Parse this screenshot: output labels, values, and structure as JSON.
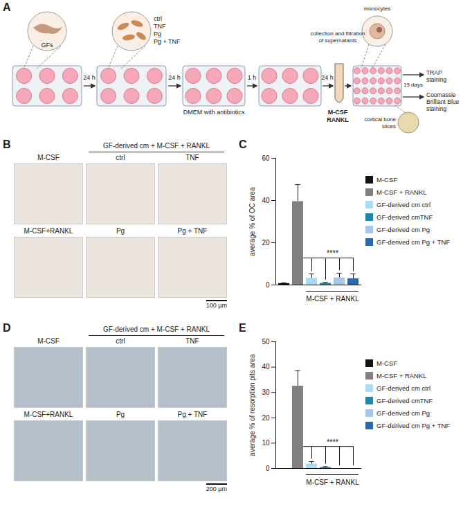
{
  "panels": {
    "A": {
      "letter": "A",
      "cells": "GFs",
      "steps": [
        "24 h",
        "24 h",
        "1 h",
        "24 h"
      ],
      "treatments": [
        "ctrl",
        "TNF",
        "Pg",
        "Pg + TNF"
      ],
      "medium": "DMEM with antibiotics",
      "collection": "collection and filtration of supernatants",
      "factors": [
        "M-CSF",
        "RANKL"
      ],
      "target_cells": "monocytes",
      "bone": "cortical bone slices",
      "duration": "19 days",
      "readouts": [
        "TRAP staining",
        "Coomassie Brilliant Blue staining"
      ]
    },
    "B": {
      "letter": "B",
      "group_head": "GF-derived cm + M-CSF + RANKL",
      "rows": [
        [
          "M-CSF",
          "ctrl",
          "TNF"
        ],
        [
          "M-CSF+RANKL",
          "Pg",
          "Pg + TNF"
        ]
      ],
      "scale_bar": "100 µm"
    },
    "D": {
      "letter": "D",
      "group_head": "GF-derived cm + M-CSF + RANKL",
      "rows": [
        [
          "M-CSF",
          "ctrl",
          "TNF"
        ],
        [
          "M-CSF+RANKL",
          "Pg",
          "Pg + TNF"
        ]
      ],
      "scale_bar": "200 µm"
    }
  },
  "chart_data": [
    {
      "letter": "C",
      "type": "bar",
      "categories": [
        "M-CSF",
        "M-CSF + RANKL",
        "GF-derived cm ctrl",
        "GF-derived cmTNF",
        "GF-derived cm Pg",
        "GF-derived cm Pg + TNF"
      ],
      "values": [
        0.7,
        39.5,
        3.2,
        0.8,
        3.4,
        3.0
      ],
      "errors": [
        0.3,
        8,
        2,
        0.4,
        2.2,
        2.2
      ],
      "colors": [
        "#111111",
        "#808080",
        "#a9dcf2",
        "#1f86a6",
        "#a8c6e8",
        "#2f6aa8"
      ],
      "ylabel": "average % of OC area",
      "ylim": [
        0,
        60
      ],
      "yticks": [
        0,
        20,
        40,
        60
      ],
      "tick_labels": "y",
      "legend": "right",
      "significance": {
        "label": "****",
        "from": "M-CSF + RANKL",
        "to": [
          "GF-derived cm ctrl",
          "GF-derived cmTNF",
          "GF-derived cm Pg",
          "GF-derived cm Pg + TNF"
        ]
      },
      "group_label": "M-CSF + RANKL"
    },
    {
      "letter": "E",
      "type": "bar",
      "categories": [
        "M-CSF",
        "M-CSF + RANKL",
        "GF-derived cm ctrl",
        "GF-derived cmTNF",
        "GF-derived cm Pg",
        "GF-derived cm Pg + TNF"
      ],
      "values": [
        0,
        32.5,
        1.8,
        0.4,
        0,
        0
      ],
      "errors": [
        0,
        6,
        0.9,
        0.3,
        0,
        0
      ],
      "colors": [
        "#111111",
        "#808080",
        "#a9dcf2",
        "#1f86a6",
        "#a8c6e8",
        "#2f6aa8"
      ],
      "ylabel": "average % of resorption pits area",
      "ylim": [
        0,
        50
      ],
      "yticks": [
        0,
        10,
        20,
        30,
        40,
        50
      ],
      "tick_labels": "y",
      "legend": "right",
      "significance": {
        "label": "****",
        "from": "M-CSF + RANKL",
        "to": [
          "GF-derived cm ctrl",
          "GF-derived cmTNF",
          "GF-derived cm Pg",
          "GF-derived cm Pg + TNF"
        ]
      },
      "group_label": "M-CSF + RANKL"
    }
  ]
}
